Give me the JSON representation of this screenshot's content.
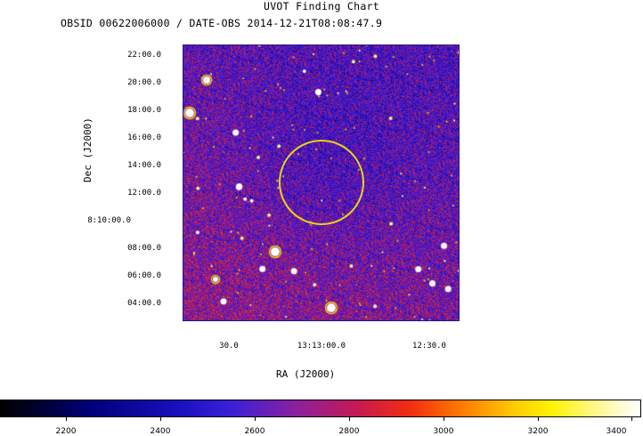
{
  "header": {
    "title": "UVOT Finding Chart",
    "subtitle": "OBSID 00622006000 / DATE-OBS 2014-12-21T08:08:47.9"
  },
  "axes": {
    "dec_title": "Dec (J2000)",
    "ra_title": "RA (J2000)",
    "dec_ticks": [
      "22:00.0",
      "20:00.0",
      "18:00.0",
      "16:00.0",
      "14:00.0",
      "12:00.0",
      "8:10:00.0",
      "08:00.0",
      "06:00.0",
      "04:00.0"
    ],
    "ra_ticks": [
      "30.0",
      "13:13:00.0",
      "12:30.0"
    ]
  },
  "colorbar": {
    "ticks": [
      "2200",
      "2400",
      "2600",
      "2800",
      "3000",
      "3200",
      "3400"
    ],
    "range": [
      2060,
      3420
    ]
  },
  "colors": {
    "circle": "#e8d31c"
  }
}
